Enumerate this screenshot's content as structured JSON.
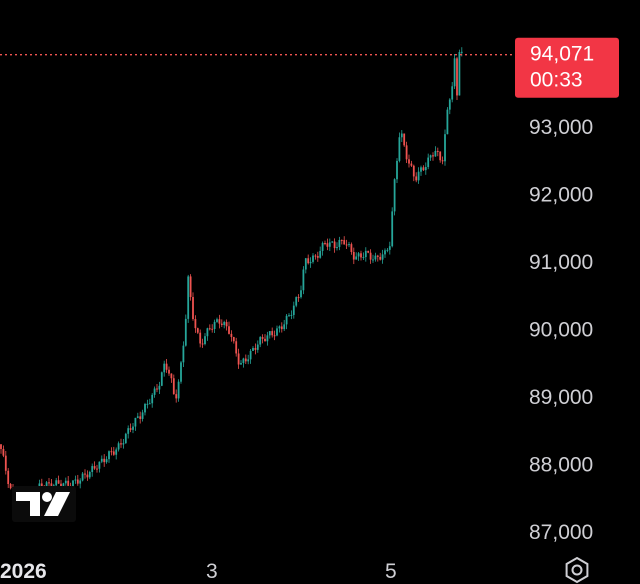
{
  "chart_data": {
    "type": "candlestick",
    "y_range": [
      86700,
      95000
    ],
    "y_ticks": [
      {
        "value": 93000,
        "label": "93,000"
      },
      {
        "value": 92000,
        "label": "92,000"
      },
      {
        "value": 91000,
        "label": "91,000"
      },
      {
        "value": 90000,
        "label": "90,000"
      },
      {
        "value": 89000,
        "label": "89,000"
      },
      {
        "value": 88000,
        "label": "88,000"
      },
      {
        "value": 87000,
        "label": "87,000"
      }
    ],
    "x_ticks": [
      {
        "label": "2026",
        "bold": true
      },
      {
        "label": "3",
        "bold": false
      },
      {
        "label": "5",
        "bold": false
      }
    ],
    "last_price": {
      "value": 94071,
      "label": "94,071",
      "countdown": "00:33"
    },
    "price_path": [
      [
        0,
        88300
      ],
      [
        10,
        87600
      ],
      [
        20,
        87300
      ],
      [
        30,
        87450
      ],
      [
        40,
        87700
      ],
      [
        50,
        87650
      ],
      [
        60,
        87700
      ],
      [
        70,
        87750
      ],
      [
        80,
        87800
      ],
      [
        90,
        87850
      ],
      [
        100,
        88000
      ],
      [
        110,
        88200
      ],
      [
        120,
        88300
      ],
      [
        130,
        88500
      ],
      [
        140,
        88700
      ],
      [
        150,
        89000
      ],
      [
        160,
        89250
      ],
      [
        165,
        89500
      ],
      [
        170,
        89300
      ],
      [
        175,
        88900
      ],
      [
        180,
        89300
      ],
      [
        185,
        90000
      ],
      [
        188,
        90800
      ],
      [
        192,
        90300
      ],
      [
        200,
        89800
      ],
      [
        210,
        90000
      ],
      [
        220,
        90100
      ],
      [
        230,
        90000
      ],
      [
        240,
        89500
      ],
      [
        250,
        89600
      ],
      [
        260,
        89800
      ],
      [
        270,
        89950
      ],
      [
        280,
        90050
      ],
      [
        290,
        90200
      ],
      [
        300,
        90500
      ],
      [
        305,
        91000
      ],
      [
        315,
        91100
      ],
      [
        325,
        91300
      ],
      [
        335,
        91200
      ],
      [
        345,
        91300
      ],
      [
        355,
        91100
      ],
      [
        365,
        91150
      ],
      [
        375,
        91000
      ],
      [
        385,
        91100
      ],
      [
        390,
        91300
      ],
      [
        395,
        92300
      ],
      [
        400,
        93000
      ],
      [
        408,
        92500
      ],
      [
        415,
        92200
      ],
      [
        425,
        92400
      ],
      [
        435,
        92700
      ],
      [
        442,
        92500
      ],
      [
        448,
        93300
      ],
      [
        452,
        93600
      ],
      [
        455,
        94000
      ],
      [
        457,
        93400
      ],
      [
        460,
        94300
      ],
      [
        462,
        94071
      ]
    ],
    "colors": {
      "up": "#26a69a",
      "down": "#ef5350",
      "price_line": "#ef5350",
      "price_box": "#f23645"
    }
  }
}
